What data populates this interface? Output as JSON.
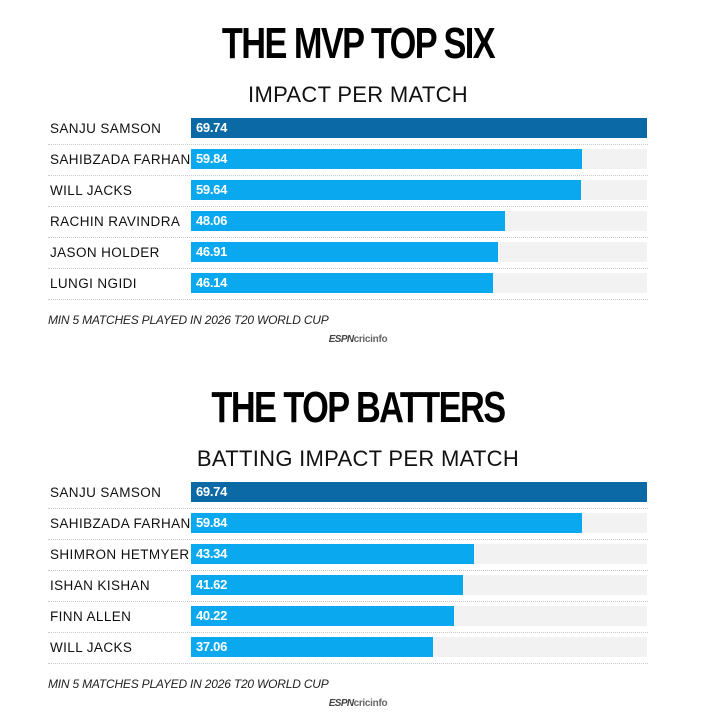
{
  "chart_data": [
    {
      "type": "bar",
      "title": "THE MVP TOP SIX",
      "subtitle": "IMPACT PER MATCH",
      "categories": [
        "SANJU SAMSON",
        "SAHIBZADA FARHAN",
        "WILL JACKS",
        "RACHIN RAVINDRA",
        "JASON HOLDER",
        "LUNGI NGIDI"
      ],
      "values": [
        69.74,
        59.84,
        59.64,
        48.06,
        46.91,
        46.14
      ],
      "value_labels": [
        "69.74",
        "59.84",
        "59.64",
        "48.06",
        "46.91",
        "46.14"
      ],
      "xlim": [
        0,
        69.74
      ],
      "orientation": "horizontal",
      "footnote": "MIN 5 MATCHES PLAYED IN 2026 T20 WORLD CUP"
    },
    {
      "type": "bar",
      "title": "THE TOP BATTERS",
      "subtitle": "BATTING IMPACT PER MATCH",
      "categories": [
        "SANJU SAMSON",
        "SAHIBZADA FARHAN",
        "SHIMRON HETMYER",
        "ISHAN KISHAN",
        "FINN ALLEN",
        "WILL JACKS"
      ],
      "values": [
        69.74,
        59.84,
        43.34,
        41.62,
        40.22,
        37.06
      ],
      "value_labels": [
        "69.74",
        "59.84",
        "43.34",
        "41.62",
        "40.22",
        "37.06"
      ],
      "xlim": [
        0,
        69.74
      ],
      "orientation": "horizontal",
      "footnote": "MIN 5 MATCHES PLAYED IN 2026 T20 WORLD CUP"
    }
  ],
  "branding": {
    "espn": "ESPN",
    "cricinfo": "cricinfo"
  },
  "colors": {
    "top_bar": "#0b6aa6",
    "bar": "#0aa8ef",
    "track": "#f2f2f2"
  }
}
